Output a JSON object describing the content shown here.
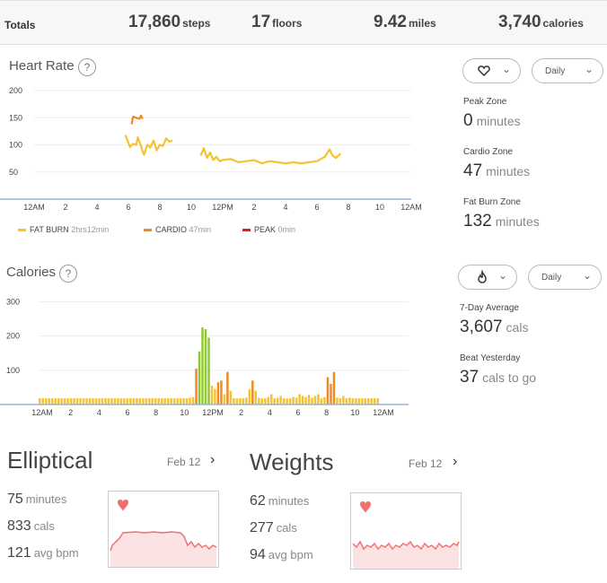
{
  "totals": {
    "label": "Totals",
    "steps": {
      "value": "17,860",
      "unit": "steps"
    },
    "floors": {
      "value": "17",
      "unit": "floors"
    },
    "miles": {
      "value": "9.42",
      "unit": "miles"
    },
    "calories": {
      "value": "3,740",
      "unit": "calories"
    }
  },
  "heart_rate": {
    "title": "Heart Rate",
    "help": "?",
    "filter_icon": "heart-icon",
    "period": "Daily",
    "zones": [
      {
        "label": "Peak Zone",
        "value": "0",
        "unit": "minutes"
      },
      {
        "label": "Cardio Zone",
        "value": "47",
        "unit": "minutes"
      },
      {
        "label": "Fat Burn Zone",
        "value": "132",
        "unit": "minutes"
      }
    ],
    "legend": [
      {
        "name": "FAT BURN",
        "duration": "2hrs12min",
        "color": "#f5c231"
      },
      {
        "name": "CARDIO",
        "duration": "47min",
        "color": "#f08a24"
      },
      {
        "name": "PEAK",
        "duration": "0min",
        "color": "#e0201b"
      }
    ]
  },
  "calories": {
    "title": "Calories",
    "help": "?",
    "filter_icon": "flame-icon",
    "period": "Daily",
    "stats": [
      {
        "label": "7-Day Average",
        "value": "3,607",
        "unit": "cals"
      },
      {
        "label": "Beat Yesterday",
        "value": "37",
        "unit": "cals to go"
      }
    ]
  },
  "exercises": [
    {
      "title": "Elliptical",
      "date": "Feb 12",
      "minutes": "75",
      "minutes_unit": "minutes",
      "cals": "833",
      "cals_unit": "cals",
      "bpm": "121",
      "bpm_unit": "avg bpm"
    },
    {
      "title": "Weights",
      "date": "Feb 12",
      "minutes": "62",
      "minutes_unit": "minutes",
      "cals": "277",
      "cals_unit": "cals",
      "bpm": "94",
      "bpm_unit": "avg bpm"
    }
  ],
  "colors": {
    "fat_burn": "#f5c231",
    "cardio": "#f08a24",
    "peak": "#e0201b",
    "active": "#8fc92e",
    "exercise_line": "#f07070"
  },
  "chart_data": [
    {
      "type": "line",
      "x_ticks": [
        "12AM",
        "2",
        "4",
        "6",
        "8",
        "10",
        "12PM",
        "2",
        "4",
        "6",
        "8",
        "10",
        "12AM"
      ],
      "y_ticks": [
        50,
        100,
        150,
        200
      ],
      "ylim": [
        0,
        210
      ],
      "xlim": [
        0,
        24
      ],
      "grid": true,
      "series": [
        {
          "name": "FAT BURN",
          "x": [
            5.8,
            6.0,
            6.1,
            6.3,
            6.5,
            6.6,
            6.8,
            6.9,
            7.0,
            7.2,
            7.4,
            7.6,
            7.8,
            8.0,
            8.2,
            8.4,
            8.6,
            8.8
          ],
          "y": [
            118,
            104,
            96,
            102,
            100,
            114,
            98,
            88,
            82,
            100,
            95,
            108,
            90,
            100,
            98,
            112,
            106,
            108
          ]
        },
        {
          "name": "CARDIO",
          "x": [
            6.2,
            6.3,
            6.5,
            6.7,
            6.8,
            6.9
          ],
          "y": [
            138,
            152,
            150,
            148,
            154,
            148
          ]
        },
        {
          "name": "FAT BURN",
          "x": [
            10.6,
            10.8,
            11.0,
            11.2,
            11.4,
            11.6,
            11.8,
            12.0,
            12.5,
            13.0,
            13.5,
            14.0,
            14.5,
            15.0,
            15.5,
            16.0,
            16.5,
            17.0,
            17.5,
            18.0,
            18.5,
            18.8,
            19.0,
            19.2,
            19.5
          ],
          "y": [
            80,
            94,
            76,
            86,
            72,
            78,
            70,
            72,
            74,
            68,
            70,
            72,
            66,
            70,
            68,
            66,
            68,
            66,
            68,
            70,
            78,
            92,
            80,
            76,
            84
          ]
        }
      ]
    },
    {
      "type": "bar",
      "x_ticks": [
        "12AM",
        "2",
        "4",
        "6",
        "8",
        "10",
        "12PM",
        "2",
        "4",
        "6",
        "8",
        "10",
        "12AM"
      ],
      "y_ticks": [
        100,
        200,
        300
      ],
      "ylim": [
        0,
        330
      ],
      "xlim": [
        0,
        24
      ],
      "bin_minutes": 15,
      "values": [
        18,
        18,
        18,
        18,
        18,
        18,
        18,
        18,
        18,
        18,
        18,
        18,
        18,
        18,
        18,
        18,
        18,
        18,
        18,
        18,
        18,
        18,
        18,
        18,
        18,
        18,
        18,
        18,
        18,
        18,
        18,
        18,
        18,
        18,
        18,
        18,
        18,
        18,
        18,
        18,
        18,
        18,
        18,
        18,
        18,
        18,
        18,
        18,
        20,
        22,
        105,
        155,
        225,
        220,
        195,
        55,
        45,
        65,
        70,
        30,
        95,
        40,
        18,
        18,
        18,
        18,
        20,
        45,
        70,
        40,
        20,
        18,
        18,
        22,
        30,
        18,
        20,
        25,
        18,
        18,
        18,
        22,
        20,
        30,
        25,
        22,
        28,
        20,
        25,
        30,
        18,
        22,
        80,
        60,
        95,
        20,
        18,
        25,
        18,
        20,
        18,
        18,
        18,
        18,
        18,
        18,
        18,
        18,
        18
      ],
      "categories_note": ""
    }
  ]
}
